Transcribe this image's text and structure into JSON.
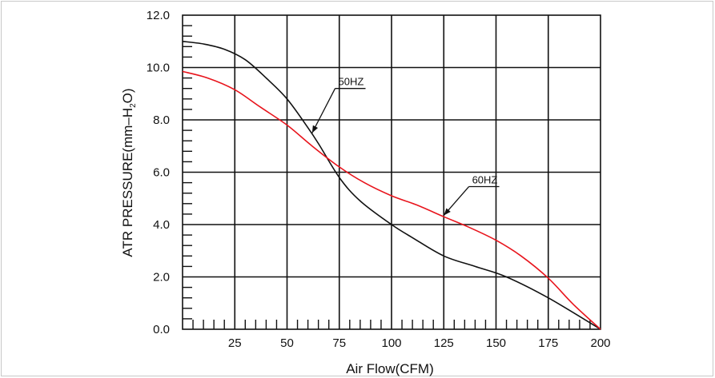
{
  "chart_data": {
    "type": "line",
    "title": "",
    "xlabel": "Air Flow(CFM)",
    "ylabel_parts": [
      "ATR PRESSURE(mm–H",
      "2",
      "O)"
    ],
    "xlim": [
      0,
      200
    ],
    "ylim": [
      0,
      12
    ],
    "x_ticks": [
      25,
      50,
      75,
      100,
      125,
      150,
      175,
      200
    ],
    "x_tick_labels": [
      "25",
      "50",
      "75",
      "100",
      "125",
      "150",
      "175",
      "200"
    ],
    "y_ticks": [
      0,
      2,
      4,
      6,
      8,
      10,
      12
    ],
    "y_tick_labels": [
      "0.0",
      "2.0",
      "4.0",
      "6.0",
      "8.0",
      "10.0",
      "12.0"
    ],
    "grid": true,
    "series": [
      {
        "name": "50HZ",
        "color": "#111111",
        "points": [
          [
            0,
            11.0
          ],
          [
            10,
            10.9
          ],
          [
            20,
            10.7
          ],
          [
            30,
            10.3
          ],
          [
            40,
            9.6
          ],
          [
            50,
            8.8
          ],
          [
            60,
            7.7
          ],
          [
            65,
            7.1
          ],
          [
            75,
            5.8
          ],
          [
            85,
            4.9
          ],
          [
            100,
            4.0
          ],
          [
            110,
            3.5
          ],
          [
            125,
            2.8
          ],
          [
            140,
            2.4
          ],
          [
            155,
            2.0
          ],
          [
            175,
            1.2
          ],
          [
            200,
            0.0
          ]
        ]
      },
      {
        "name": "60HZ",
        "color": "#e8141c",
        "points": [
          [
            0,
            9.85
          ],
          [
            12,
            9.6
          ],
          [
            25,
            9.15
          ],
          [
            37,
            8.5
          ],
          [
            50,
            7.8
          ],
          [
            62,
            7.0
          ],
          [
            75,
            6.2
          ],
          [
            87,
            5.6
          ],
          [
            100,
            5.1
          ],
          [
            112,
            4.75
          ],
          [
            125,
            4.3
          ],
          [
            137,
            3.9
          ],
          [
            150,
            3.4
          ],
          [
            162,
            2.8
          ],
          [
            175,
            1.95
          ],
          [
            187,
            0.95
          ],
          [
            200,
            0.0
          ]
        ]
      }
    ],
    "annotations": [
      {
        "text": "50HZ",
        "series": "50HZ",
        "label_at": [
          73,
          9.2
        ],
        "arrow_to": [
          62,
          7.5
        ]
      },
      {
        "text": "60HZ",
        "series": "60HZ",
        "label_at": [
          137,
          5.45
        ],
        "arrow_to": [
          125,
          4.35
        ]
      }
    ]
  }
}
